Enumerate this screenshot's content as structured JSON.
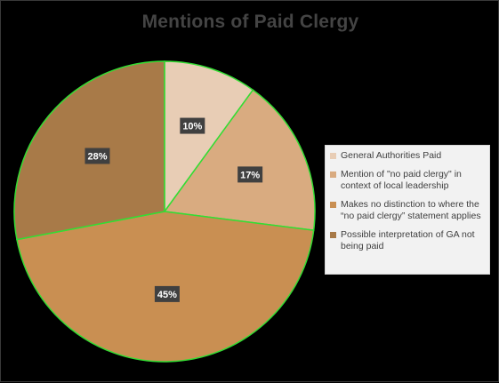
{
  "chart_data": {
    "type": "pie",
    "title": "Mentions of Paid Clergy",
    "categories": [
      "General Authorities Paid",
      "Mention of \"no paid clergy\" in context of local leadership",
      "Makes no distinction to where the “no paid clergy” statement applies",
      "Possible interpretation of GA not being paid"
    ],
    "values": [
      10,
      17,
      45,
      28
    ],
    "data_labels": [
      "10%",
      "17%",
      "45%",
      "28%"
    ],
    "colors": [
      "#e8cdb5",
      "#d9ab80",
      "#c98f52",
      "#a87a48"
    ],
    "slice_border_color": "#33dd33",
    "legend_position": "right"
  }
}
